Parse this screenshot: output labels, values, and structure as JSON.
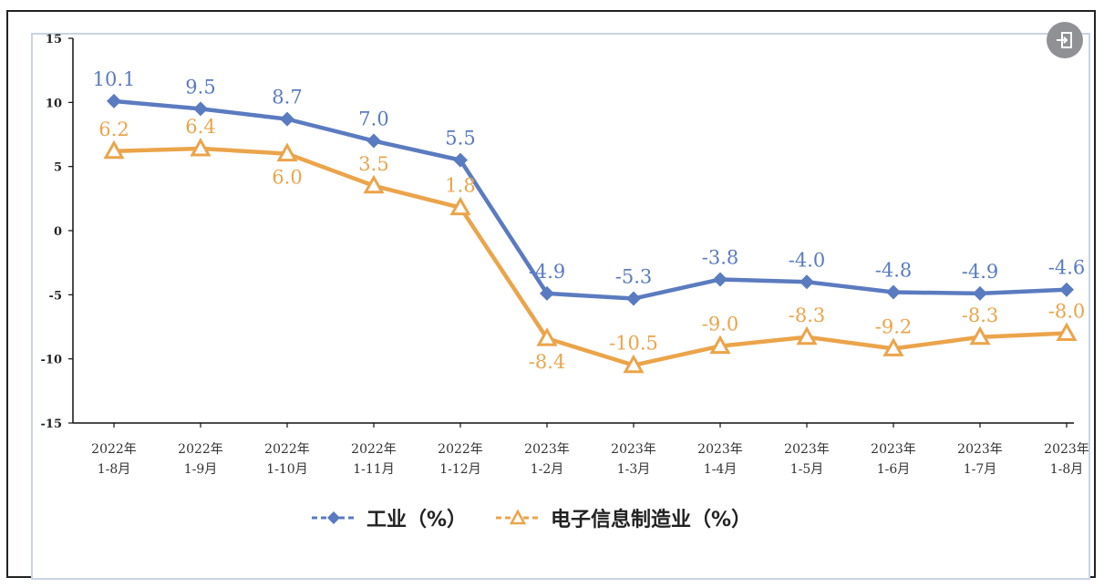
{
  "chart_data": {
    "type": "line",
    "categories": [
      [
        "2022年",
        "1-8月"
      ],
      [
        "2022年",
        "1-9月"
      ],
      [
        "2022年",
        "1-10月"
      ],
      [
        "2022年",
        "1-11月"
      ],
      [
        "2022年",
        "1-12月"
      ],
      [
        "2023年",
        "1-2月"
      ],
      [
        "2023年",
        "1-3月"
      ],
      [
        "2023年",
        "1-4月"
      ],
      [
        "2023年",
        "1-5月"
      ],
      [
        "2023年",
        "1-6月"
      ],
      [
        "2023年",
        "1-7月"
      ],
      [
        "2023年",
        "1-8月"
      ]
    ],
    "ylim": [
      -15,
      15
    ],
    "yticks": [
      "15",
      "10",
      "5",
      "0",
      "-5",
      "-10",
      "-15"
    ],
    "grid": false,
    "legend_position": "bottom",
    "series": [
      {
        "name": "工业（%）",
        "color": "#5b7bc0",
        "marker": "diamond",
        "values": [
          10.1,
          9.5,
          8.7,
          7.0,
          5.5,
          -4.9,
          -5.3,
          -3.8,
          -4.0,
          -4.8,
          -4.9,
          -4.6
        ],
        "labels": [
          "10.1",
          "9.5",
          "8.7",
          "7.0",
          "5.5",
          "-4.9",
          "-5.3",
          "-3.8",
          "-4.0",
          "-4.8",
          "-4.9",
          "-4.6"
        ]
      },
      {
        "name": "电子信息制造业（%）",
        "color": "#eba44a",
        "marker": "triangle",
        "values": [
          6.2,
          6.4,
          6.0,
          3.5,
          1.8,
          -8.4,
          -10.5,
          -9.0,
          -8.3,
          -9.2,
          -8.3,
          -8.0
        ],
        "labels": [
          "6.2",
          "6.4",
          "6.0",
          "3.5",
          "1.8",
          "-8.4",
          "-10.5",
          "-9.0",
          "-8.3",
          "-9.2",
          "-8.3",
          "-8.0"
        ]
      }
    ]
  },
  "controls": {
    "exit_icon": "exit-icon"
  }
}
